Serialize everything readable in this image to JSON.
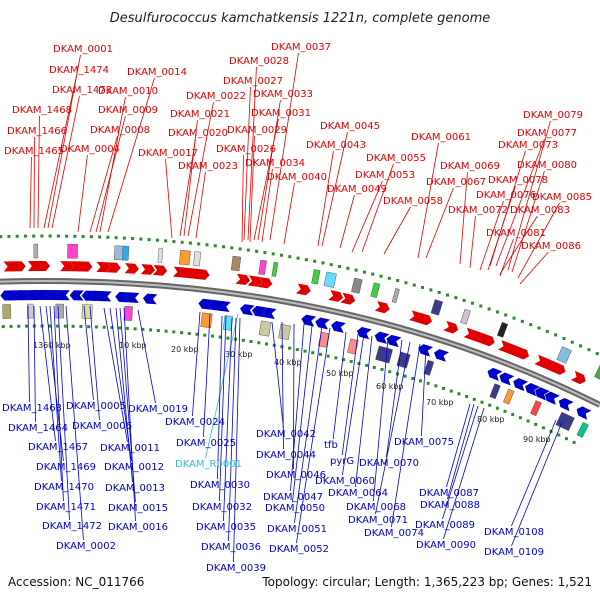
{
  "title": "Desulfurococcus kamchatkensis 1221n, complete genome",
  "footer": {
    "accession": "Accession: NC_011766",
    "summary": "Topology: circular; Length: 1,365,223 bp; Genes: 1,521"
  },
  "colors": {
    "forward": "#e00000",
    "reverse": "#0000c8",
    "highlight": "#33bbdd",
    "backbone": "#8a8a8a",
    "gc_dots": "#2a8a2a"
  },
  "forward_labels": [
    "DKAM_0001",
    "DKAM_1474",
    "DKAM_1473",
    "DKAM_1468",
    "DKAM_1466",
    "DKAM_1465",
    "DKAM_0014",
    "DKAM_0010",
    "DKAM_0009",
    "DKAM_0008",
    "DKAM_0004",
    "DKAM_0022",
    "DKAM_0021",
    "DKAM_0020",
    "DKAM_0017",
    "DKAM_0023",
    "DKAM_0037",
    "DKAM_0028",
    "DKAM_0027",
    "DKAM_0033",
    "DKAM_0031",
    "DKAM_0029",
    "DKAM_0026",
    "DKAM_0034",
    "DKAM_0040",
    "DKAM_0045",
    "DKAM_0043",
    "DKAM_0049",
    "DKAM_0055",
    "DKAM_0053",
    "DKAM_0058",
    "DKAM_0061",
    "DKAM_0067",
    "DKAM_0079",
    "DKAM_0077",
    "DKAM_0073",
    "DKAM_0069",
    "DKAM_0080",
    "DKAM_0078",
    "DKAM_0076",
    "DKAM_0085",
    "DKAM_0072",
    "DKAM_0083",
    "DKAM_0081",
    "DKAM_0086"
  ],
  "reverse_labels": [
    "DKAM_1463",
    "DKAM_1464",
    "DKAM_1467",
    "DKAM_1469",
    "DKAM_1470",
    "DKAM_1471",
    "DKAM_1472",
    "DKAM_0002",
    "DKAM_0005",
    "DKAM_0006",
    "DKAM_0011",
    "DKAM_0012",
    "DKAM_0013",
    "DKAM_0015",
    "DKAM_0016",
    "DKAM_0019",
    "DKAM_0024",
    "DKAM_0025",
    "DKAM_R0001",
    "DKAM_0030",
    "DKAM_0032",
    "DKAM_0035",
    "DKAM_0036",
    "DKAM_0039",
    "DKAM_0042",
    "DKAM_0044",
    "DKAM_0046",
    "DKAM_0047",
    "DKAM_0050",
    "DKAM_0051",
    "DKAM_0052",
    "tfb",
    "pyrG",
    "DKAM_0060",
    "DKAM_0064",
    "DKAM_0068",
    "DKAM_0070",
    "DKAM_0071",
    "DKAM_0074",
    "DKAM_0075",
    "DKAM_0087",
    "DKAM_0088",
    "DKAM_0089",
    "DKAM_0090",
    "DKAM_0108",
    "DKAM_0109"
  ],
  "scale_labels": [
    "1360 kbp",
    "10 kbp",
    "20 kbp",
    "30 kbp",
    "40 kbp",
    "50 kbp",
    "60 kbp",
    "70 kbp",
    "80 kbp",
    "90 kbp"
  ]
}
